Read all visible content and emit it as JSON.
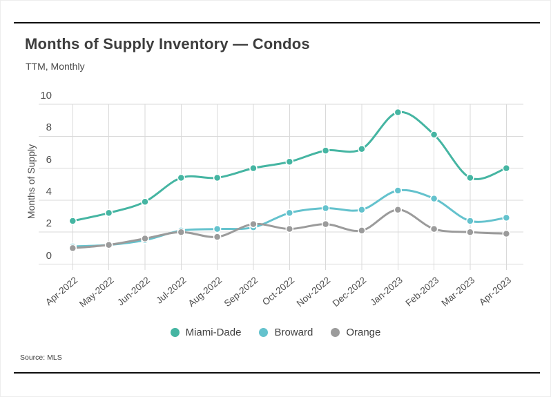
{
  "chart_data": {
    "type": "line",
    "title": "Months of Supply Inventory — Condos",
    "subtitle": "TTM, Monthly",
    "ylabel": "Months of Supply",
    "source": "Source: MLS",
    "ylim": [
      0,
      10
    ],
    "yticks": [
      0,
      2,
      4,
      6,
      8,
      10
    ],
    "grid": true,
    "legend_position": "bottom-center",
    "gridline_color": "#d9d9d9",
    "categories": [
      "Apr-2022",
      "May-2022",
      "Jun-2022",
      "Jul-2022",
      "Aug-2022",
      "Sep-2022",
      "Oct-2022",
      "Nov-2022",
      "Dec-2022",
      "Jan-2023",
      "Feb-2023",
      "Mar-2023",
      "Apr-2023"
    ],
    "series": [
      {
        "name": "Miami-Dade",
        "color": "#45b5a2",
        "values": [
          2.7,
          3.2,
          3.9,
          5.4,
          5.4,
          6.0,
          6.4,
          7.1,
          7.2,
          9.5,
          8.1,
          5.4,
          6.0
        ]
      },
      {
        "name": "Broward",
        "color": "#64c2cd",
        "values": [
          1.1,
          1.2,
          1.5,
          2.1,
          2.2,
          2.3,
          3.2,
          3.5,
          3.4,
          4.6,
          4.1,
          2.7,
          2.9
        ]
      },
      {
        "name": "Orange",
        "color": "#9b9b9b",
        "values": [
          1.0,
          1.2,
          1.6,
          2.0,
          1.7,
          2.5,
          2.2,
          2.5,
          2.1,
          3.4,
          2.2,
          2.0,
          1.9
        ]
      }
    ]
  }
}
